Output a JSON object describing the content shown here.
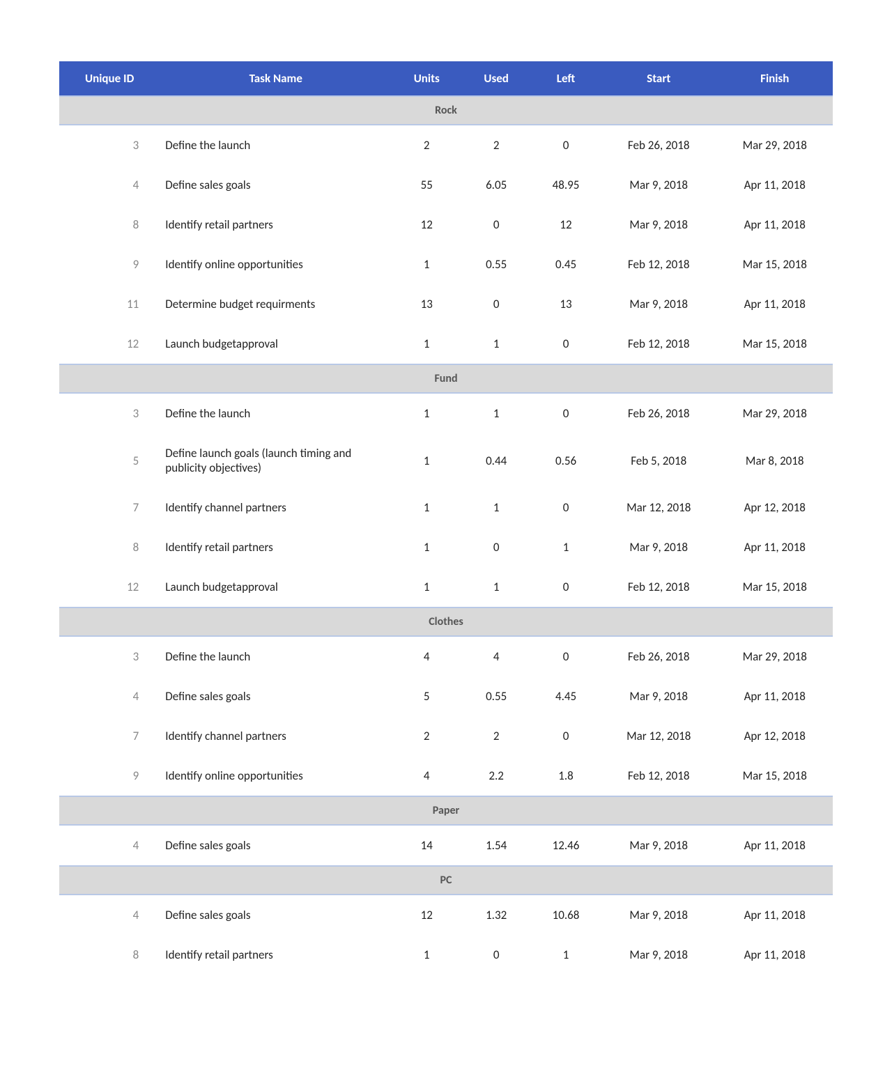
{
  "table": {
    "header_bg": "#3a5bbf",
    "header_fg": "#ffffff",
    "group_bg": "#d9d9d9",
    "border_color": "#b8c8e6",
    "columns": [
      {
        "key": "id",
        "label": "Unique ID",
        "class": "col-id"
      },
      {
        "key": "task",
        "label": "Task Name",
        "class": "col-task"
      },
      {
        "key": "units",
        "label": "Units",
        "class": "col-units"
      },
      {
        "key": "used",
        "label": "Used",
        "class": "col-used"
      },
      {
        "key": "left",
        "label": "Left",
        "class": "col-left"
      },
      {
        "key": "start",
        "label": "Start",
        "class": "col-start"
      },
      {
        "key": "finish",
        "label": "Finish",
        "class": "col-finish"
      }
    ],
    "groups": [
      {
        "name": "Rock",
        "rows": [
          {
            "id": "3",
            "task": "Define the launch",
            "units": "2",
            "used": "2",
            "left": "0",
            "start": "Feb 26, 2018",
            "finish": "Mar 29, 2018"
          },
          {
            "id": "4",
            "task": "Define sales goals",
            "units": "55",
            "used": "6.05",
            "left": "48.95",
            "start": "Mar 9, 2018",
            "finish": "Apr 11, 2018"
          },
          {
            "id": "8",
            "task": "Identify retail partners",
            "units": "12",
            "used": "0",
            "left": "12",
            "start": "Mar 9, 2018",
            "finish": "Apr 11, 2018"
          },
          {
            "id": "9",
            "task": "Identify online opportunities",
            "units": "1",
            "used": "0.55",
            "left": "0.45",
            "start": "Feb 12, 2018",
            "finish": "Mar 15, 2018"
          },
          {
            "id": "11",
            "task": "Determine budget requirments",
            "units": "13",
            "used": "0",
            "left": "13",
            "start": "Mar 9, 2018",
            "finish": "Apr 11, 2018"
          },
          {
            "id": "12",
            "task": "Launch budgetapproval",
            "units": "1",
            "used": "1",
            "left": "0",
            "start": "Feb 12, 2018",
            "finish": "Mar 15, 2018"
          }
        ]
      },
      {
        "name": "Fund",
        "rows": [
          {
            "id": "3",
            "task": "Define the launch",
            "units": "1",
            "used": "1",
            "left": "0",
            "start": "Feb 26, 2018",
            "finish": "Mar 29, 2018"
          },
          {
            "id": "5",
            "task": "Define launch goals (launch timing and publicity objectives)",
            "units": "1",
            "used": "0.44",
            "left": "0.56",
            "start": "Feb 5, 2018",
            "finish": "Mar 8, 2018"
          },
          {
            "id": "7",
            "task": "Identify channel partners",
            "units": "1",
            "used": "1",
            "left": "0",
            "start": "Mar 12, 2018",
            "finish": "Apr 12, 2018"
          },
          {
            "id": "8",
            "task": "Identify retail partners",
            "units": "1",
            "used": "0",
            "left": "1",
            "start": "Mar 9, 2018",
            "finish": "Apr 11, 2018"
          },
          {
            "id": "12",
            "task": "Launch budgetapproval",
            "units": "1",
            "used": "1",
            "left": "0",
            "start": "Feb 12, 2018",
            "finish": "Mar 15, 2018"
          }
        ]
      },
      {
        "name": "Clothes",
        "rows": [
          {
            "id": "3",
            "task": "Define the launch",
            "units": "4",
            "used": "4",
            "left": "0",
            "start": "Feb 26, 2018",
            "finish": "Mar 29, 2018"
          },
          {
            "id": "4",
            "task": "Define sales goals",
            "units": "5",
            "used": "0.55",
            "left": "4.45",
            "start": "Mar 9, 2018",
            "finish": "Apr 11, 2018"
          },
          {
            "id": "7",
            "task": "Identify channel partners",
            "units": "2",
            "used": "2",
            "left": "0",
            "start": "Mar 12, 2018",
            "finish": "Apr 12, 2018"
          },
          {
            "id": "9",
            "task": "Identify online opportunities",
            "units": "4",
            "used": "2.2",
            "left": "1.8",
            "start": "Feb 12, 2018",
            "finish": "Mar 15, 2018"
          }
        ]
      },
      {
        "name": "Paper",
        "rows": [
          {
            "id": "4",
            "task": "Define sales goals",
            "units": "14",
            "used": "1.54",
            "left": "12.46",
            "start": "Mar 9, 2018",
            "finish": "Apr 11, 2018"
          }
        ]
      },
      {
        "name": "PC",
        "rows": [
          {
            "id": "4",
            "task": "Define sales goals",
            "units": "12",
            "used": "1.32",
            "left": "10.68",
            "start": "Mar 9, 2018",
            "finish": "Apr 11, 2018"
          },
          {
            "id": "8",
            "task": "Identify retail partners",
            "units": "1",
            "used": "0",
            "left": "1",
            "start": "Mar 9, 2018",
            "finish": "Apr 11, 2018"
          }
        ]
      }
    ]
  }
}
